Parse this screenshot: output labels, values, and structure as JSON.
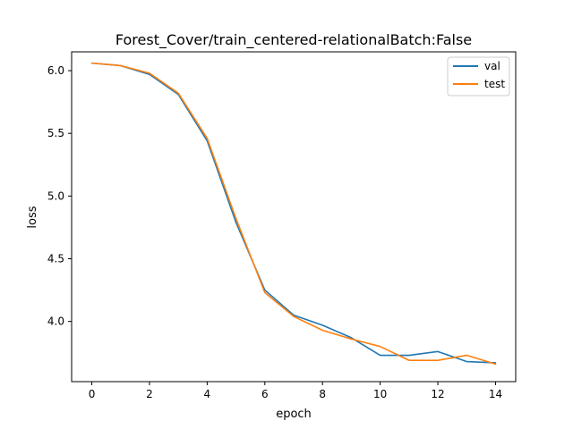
{
  "chart_data": {
    "type": "line",
    "title": "Forest_Cover/train_centered-relationalBatch:False",
    "xlabel": "epoch",
    "ylabel": "loss",
    "xlim": [
      -0.7,
      14.7
    ],
    "ylim": [
      3.52,
      6.15
    ],
    "xticks": [
      0,
      2,
      4,
      6,
      8,
      10,
      12,
      14
    ],
    "yticks": [
      4.0,
      4.5,
      5.0,
      5.5,
      6.0
    ],
    "ytick_labels": [
      "4.0",
      "4.5",
      "5.0",
      "5.5",
      "6.0"
    ],
    "grid": false,
    "legend_position": "top-right",
    "x": [
      0,
      1,
      2,
      3,
      4,
      5,
      6,
      7,
      8,
      9,
      10,
      11,
      12,
      13,
      14
    ],
    "series": [
      {
        "name": "val",
        "color": "#1f77b4",
        "values": [
          6.06,
          6.04,
          5.97,
          5.81,
          5.44,
          4.79,
          4.25,
          4.05,
          3.97,
          3.87,
          3.73,
          3.73,
          3.76,
          3.68,
          3.67
        ]
      },
      {
        "name": "test",
        "color": "#ff7f0e",
        "values": [
          6.06,
          6.04,
          5.98,
          5.82,
          5.46,
          4.82,
          4.23,
          4.04,
          3.93,
          3.86,
          3.8,
          3.69,
          3.69,
          3.73,
          3.66
        ]
      }
    ]
  }
}
